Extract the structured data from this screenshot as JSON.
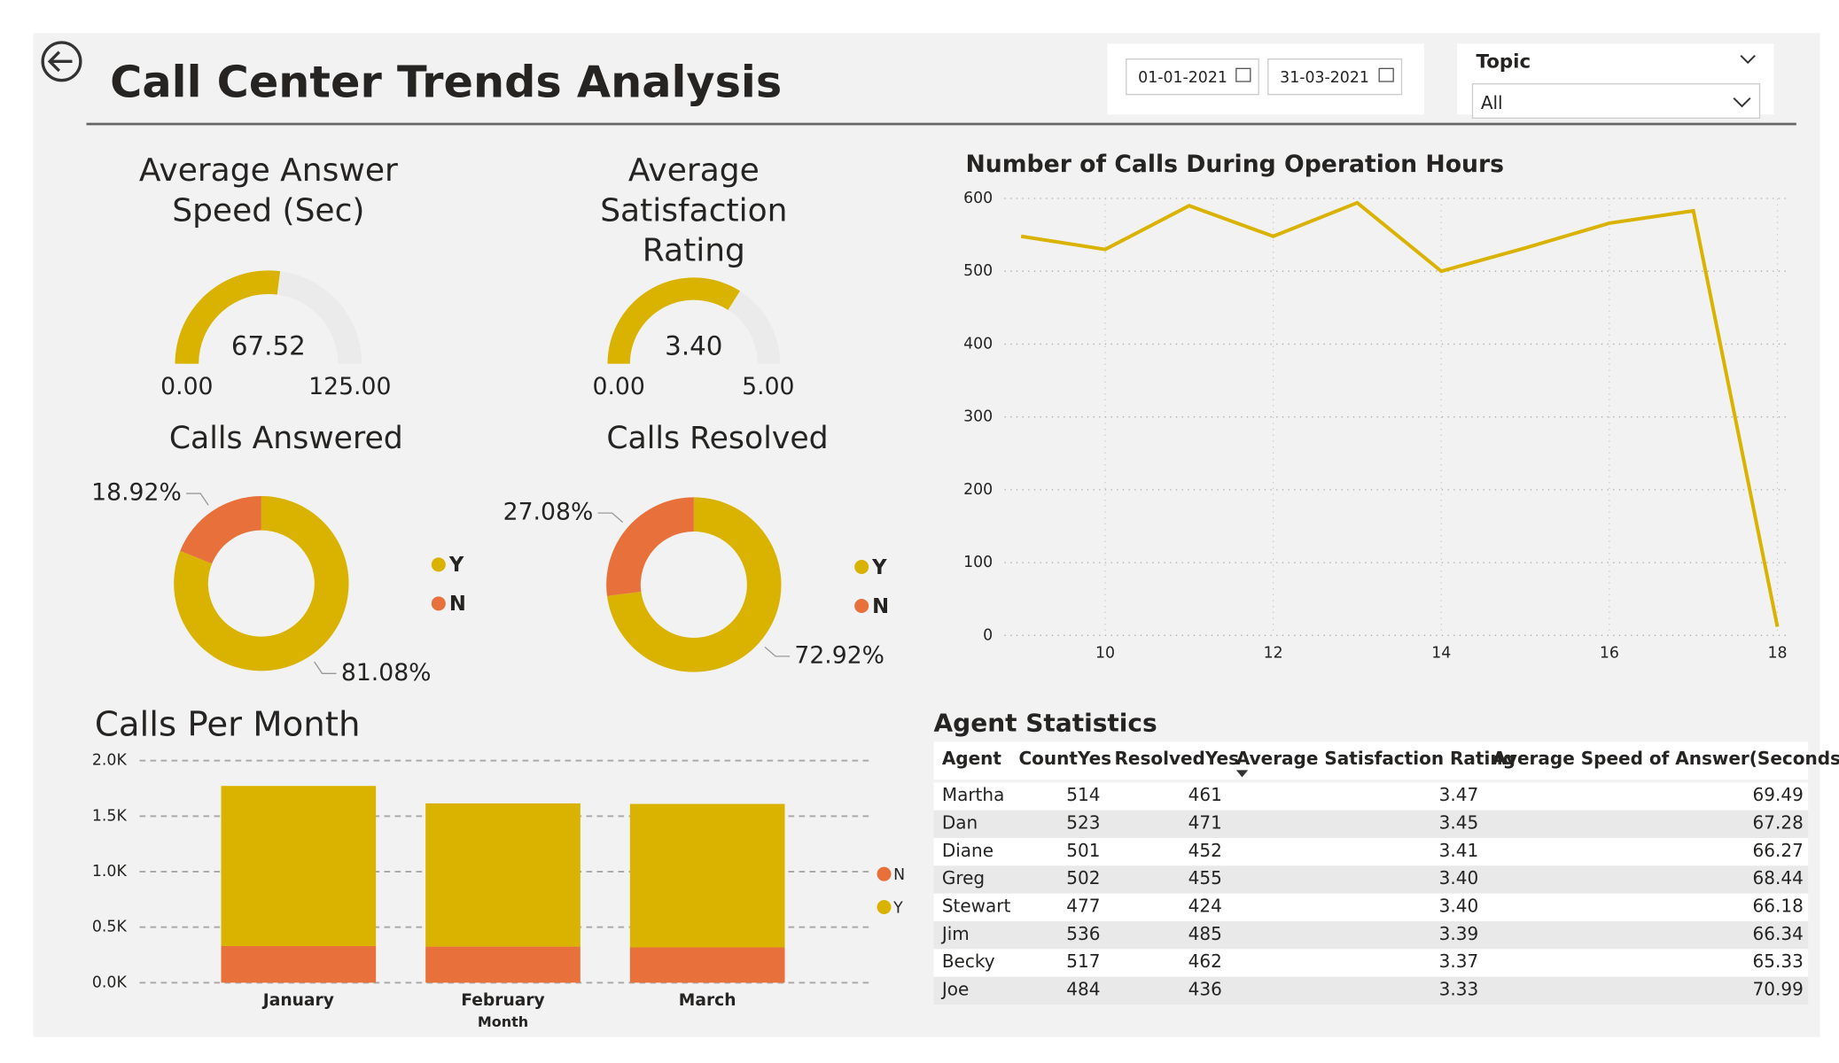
{
  "header": {
    "title": "Call Center Trends Analysis"
  },
  "filters": {
    "start_date": "01-01-2021",
    "end_date": "31-03-2021",
    "topic_label": "Topic",
    "topic_value": "All"
  },
  "chart_data": [
    {
      "type": "gauge",
      "title": "Average Answer Speed (Sec)",
      "value": 67.52,
      "min": {
        "value": 0,
        "label": "0.00"
      },
      "max": {
        "value": 125,
        "label": "125.00"
      },
      "color": "#d9b300"
    },
    {
      "type": "gauge",
      "title": "Average Satisfaction Rating",
      "value": 3.4,
      "value_label": "3.40",
      "min": {
        "value": 0,
        "label": "0.00"
      },
      "max": {
        "value": 5,
        "label": "5.00"
      },
      "color": "#d9b300"
    },
    {
      "type": "pie",
      "title": "Calls Answered",
      "categories": [
        "Y",
        "N"
      ],
      "values": [
        81.08,
        18.92
      ],
      "value_labels": [
        "81.08%",
        "18.92%"
      ],
      "colors": [
        "#d9b300",
        "#e8703a"
      ]
    },
    {
      "type": "pie",
      "title": "Calls Resolved",
      "categories": [
        "Y",
        "N"
      ],
      "values": [
        72.92,
        27.08
      ],
      "value_labels": [
        "72.92%",
        "27.08%"
      ],
      "colors": [
        "#d9b300",
        "#e8703a"
      ]
    },
    {
      "type": "line",
      "title": "Number of Calls During Operation Hours",
      "x": [
        9,
        10,
        11,
        12,
        13,
        14,
        15,
        16,
        17,
        18
      ],
      "values": [
        548,
        530,
        590,
        548,
        594,
        500,
        532,
        566,
        583,
        12
      ],
      "color": "#d9b300",
      "xlim": [
        9,
        18
      ],
      "xticks": [
        10,
        12,
        14,
        16,
        18
      ],
      "ylim": [
        0,
        600
      ],
      "yticks": [
        0,
        100,
        200,
        300,
        400,
        500,
        600
      ],
      "grid": true
    },
    {
      "type": "stacked_bar",
      "title": "Calls Per Month",
      "x_label": "Month",
      "categories": [
        "January",
        "February",
        "March"
      ],
      "series": [
        {
          "name": "N",
          "color": "#e8703a",
          "values": [
            330,
            325,
            318
          ]
        },
        {
          "name": "Y",
          "color": "#d9b300",
          "values": [
            1442,
            1290,
            1292
          ]
        }
      ],
      "ylim": [
        0,
        2000
      ],
      "yticks": [
        {
          "value": 0,
          "label": "0.0K"
        },
        {
          "value": 500,
          "label": "0.5K"
        },
        {
          "value": 1000,
          "label": "1.0K"
        },
        {
          "value": 1500,
          "label": "1.5K"
        },
        {
          "value": 2000,
          "label": "2.0K"
        }
      ],
      "grid": true
    }
  ],
  "table": {
    "title": "Agent Statistics",
    "columns": [
      "Agent",
      "CountYes",
      "ResolvedYes",
      "Average Satisfaction Rating",
      "Average Speed of Answer(Seconds)"
    ],
    "rows": [
      [
        "Martha",
        "514",
        "461",
        "3.47",
        "69.49"
      ],
      [
        "Dan",
        "523",
        "471",
        "3.45",
        "67.28"
      ],
      [
        "Diane",
        "501",
        "452",
        "3.41",
        "66.27"
      ],
      [
        "Greg",
        "502",
        "455",
        "3.40",
        "68.44"
      ],
      [
        "Stewart",
        "477",
        "424",
        "3.40",
        "66.18"
      ],
      [
        "Jim",
        "536",
        "485",
        "3.39",
        "66.34"
      ],
      [
        "Becky",
        "517",
        "462",
        "3.37",
        "65.33"
      ],
      [
        "Joe",
        "484",
        "436",
        "3.33",
        "70.99"
      ]
    ]
  }
}
